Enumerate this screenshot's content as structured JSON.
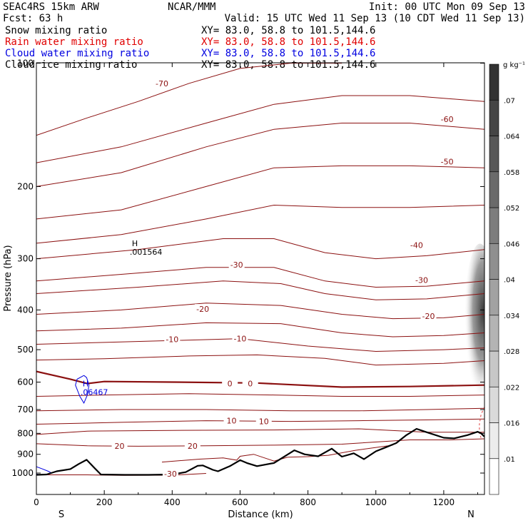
{
  "header": {
    "left1": "SEAC4RS 15km ARW",
    "center1": "NCAR/MMM",
    "right1": "Init: 00 UTC Mon 09 Sep 13",
    "left2": "Fcst:   63 h",
    "right2": "Valid: 15 UTC Wed 11 Sep 13 (10 CDT Wed 11 Sep 13)",
    "fields": [
      {
        "name": "Snow mixing ratio",
        "xy": "XY=  83.0, 58.8 to 101.5,144.6",
        "color": "#000000"
      },
      {
        "name": "Rain water mixing ratio",
        "xy": "XY=  83.0, 58.8 to 101.5,144.6",
        "color": "#e00000"
      },
      {
        "name": "Cloud water mixing ratio",
        "xy": "XY=  83.0, 58.8 to 101.5,144.6",
        "color": "#0000e0"
      },
      {
        "name": "Cloud ice mixing ratio",
        "xy": "XY=  83.0, 58.8 to 101.5,144.6",
        "color": "#000000"
      }
    ]
  },
  "chart_data": {
    "type": "cross-section",
    "xlabel": "Distance (km)",
    "ylabel": "Pressure (hPa)",
    "xlim": [
      0,
      1320
    ],
    "ylim": [
      1050,
      100
    ],
    "y_log": true,
    "x_ticks": [
      0,
      200,
      400,
      600,
      800,
      1000,
      1200
    ],
    "y_ticks": [
      100,
      200,
      300,
      400,
      500,
      600,
      700,
      800,
      900,
      1000
    ],
    "end_labels": {
      "left": "S",
      "right": "N"
    },
    "colorbar": {
      "unit": "g kg⁻¹",
      "ticks": [
        ".01",
        ".016",
        ".022",
        ".028",
        ".034",
        ".04",
        ".046",
        ".052",
        ".058",
        ".064",
        ".07"
      ],
      "values": [
        0.01,
        0.016,
        0.022,
        0.028,
        0.034,
        0.04,
        0.046,
        0.052,
        0.058,
        0.064,
        0.07
      ]
    },
    "snow_shading": {
      "x_range": [
        1260,
        1320
      ],
      "p_range": [
        300,
        590
      ],
      "max_value": 0.064
    },
    "temperature_color": "#8b1010",
    "temperature_contours": [
      {
        "label": "-70",
        "points": [
          [
            0,
            150
          ],
          [
            150,
            136
          ],
          [
            300,
            124
          ],
          [
            450,
            112
          ],
          [
            600,
            103
          ],
          [
            750,
            100
          ],
          [
            900,
            100
          ]
        ],
        "labels_at": [
          [
            370,
            112
          ]
        ]
      },
      {
        "label": "",
        "points": [
          [
            0,
            175
          ],
          [
            250,
            160
          ],
          [
            500,
            140
          ],
          [
            700,
            126
          ],
          [
            900,
            120
          ],
          [
            1100,
            120
          ],
          [
            1320,
            124
          ]
        ],
        "labels_at": []
      },
      {
        "label": "-60",
        "points": [
          [
            0,
            200
          ],
          [
            250,
            185
          ],
          [
            500,
            160
          ],
          [
            700,
            145
          ],
          [
            900,
            140
          ],
          [
            1100,
            140
          ],
          [
            1320,
            145
          ]
        ],
        "labels_at": [
          [
            1210,
            137
          ]
        ]
      },
      {
        "label": "-50",
        "points": [
          [
            0,
            240
          ],
          [
            250,
            228
          ],
          [
            500,
            200
          ],
          [
            700,
            180
          ],
          [
            900,
            178
          ],
          [
            1100,
            178
          ],
          [
            1320,
            180
          ]
        ],
        "labels_at": [
          [
            1210,
            174
          ]
        ]
      },
      {
        "label": "",
        "points": [
          [
            0,
            275
          ],
          [
            250,
            262
          ],
          [
            500,
            240
          ],
          [
            700,
            222
          ],
          [
            900,
            225
          ],
          [
            1100,
            225
          ],
          [
            1320,
            222
          ]
        ],
        "labels_at": []
      },
      {
        "label": "-40",
        "points": [
          [
            0,
            300
          ],
          [
            300,
            285
          ],
          [
            550,
            268
          ],
          [
            700,
            268
          ],
          [
            850,
            290
          ],
          [
            1000,
            300
          ],
          [
            1150,
            295
          ],
          [
            1320,
            285
          ]
        ],
        "labels_at": [
          [
            1120,
            278
          ]
        ]
      },
      {
        "label": "-30",
        "points": [
          [
            0,
            340
          ],
          [
            300,
            325
          ],
          [
            500,
            315
          ],
          [
            700,
            315
          ],
          [
            850,
            340
          ],
          [
            1000,
            352
          ],
          [
            1150,
            350
          ],
          [
            1320,
            340
          ]
        ],
        "labels_at": [
          [
            590,
            310
          ],
          [
            1135,
            338
          ]
        ]
      },
      {
        "label": "",
        "points": [
          [
            0,
            365
          ],
          [
            300,
            352
          ],
          [
            550,
            340
          ],
          [
            720,
            345
          ],
          [
            850,
            365
          ],
          [
            1000,
            378
          ],
          [
            1150,
            376
          ],
          [
            1320,
            365
          ]
        ],
        "labels_at": []
      },
      {
        "label": "-20",
        "points": [
          [
            0,
            410
          ],
          [
            250,
            400
          ],
          [
            500,
            385
          ],
          [
            720,
            390
          ],
          [
            900,
            410
          ],
          [
            1050,
            420
          ],
          [
            1200,
            418
          ],
          [
            1320,
            410
          ]
        ],
        "labels_at": [
          [
            490,
            398
          ],
          [
            1155,
            414
          ]
        ]
      },
      {
        "label": "",
        "points": [
          [
            0,
            450
          ],
          [
            250,
            443
          ],
          [
            500,
            430
          ],
          [
            720,
            432
          ],
          [
            900,
            455
          ],
          [
            1050,
            465
          ],
          [
            1200,
            462
          ],
          [
            1320,
            455
          ]
        ],
        "labels_at": []
      },
      {
        "label": "-10",
        "points": [
          [
            0,
            485
          ],
          [
            200,
            480
          ],
          [
            400,
            475
          ],
          [
            600,
            470
          ],
          [
            800,
            490
          ],
          [
            1000,
            505
          ],
          [
            1200,
            500
          ],
          [
            1320,
            495
          ]
        ],
        "labels_at": [
          [
            400,
            472
          ],
          [
            600,
            470
          ]
        ]
      },
      {
        "label": "",
        "points": [
          [
            0,
            530
          ],
          [
            200,
            526
          ],
          [
            450,
            518
          ],
          [
            650,
            515
          ],
          [
            850,
            525
          ],
          [
            1000,
            545
          ],
          [
            1200,
            540
          ],
          [
            1320,
            532
          ]
        ],
        "labels_at": []
      },
      {
        "label": "0",
        "bold": true,
        "points": [
          [
            0,
            565
          ],
          [
            100,
            590
          ],
          [
            150,
            605
          ],
          [
            200,
            598
          ],
          [
            400,
            600
          ],
          [
            650,
            603
          ],
          [
            900,
            617
          ],
          [
            1100,
            615
          ],
          [
            1320,
            610
          ]
        ],
        "labels_at": [
          [
            570,
            605
          ],
          [
            630,
            605
          ]
        ]
      },
      {
        "label": "",
        "points": [
          [
            0,
            650
          ],
          [
            200,
            645
          ],
          [
            450,
            640
          ],
          [
            700,
            645
          ],
          [
            900,
            650
          ],
          [
            1100,
            650
          ],
          [
            1320,
            645
          ]
        ],
        "labels_at": []
      },
      {
        "label": "",
        "points": [
          [
            0,
            705
          ],
          [
            250,
            700
          ],
          [
            500,
            700
          ],
          [
            750,
            705
          ],
          [
            950,
            705
          ],
          [
            1150,
            700
          ],
          [
            1320,
            695
          ]
        ],
        "labels_at": []
      },
      {
        "label": "10",
        "points": [
          [
            0,
            760
          ],
          [
            250,
            752
          ],
          [
            500,
            745
          ],
          [
            750,
            748
          ],
          [
            950,
            745
          ],
          [
            1150,
            742
          ],
          [
            1320,
            738
          ]
        ],
        "labels_at": [
          [
            575,
            745
          ],
          [
            670,
            748
          ]
        ]
      },
      {
        "label": "",
        "points": [
          [
            0,
            805
          ],
          [
            150,
            790
          ],
          [
            400,
            787
          ],
          [
            700,
            785
          ],
          [
            950,
            780
          ],
          [
            1150,
            795
          ],
          [
            1320,
            795
          ]
        ],
        "labels_at": []
      },
      {
        "label": "20",
        "points": [
          [
            0,
            848
          ],
          [
            150,
            858
          ],
          [
            300,
            860
          ],
          [
            500,
            858
          ],
          [
            700,
            855
          ],
          [
            900,
            850
          ],
          [
            1100,
            830
          ],
          [
            1220,
            830
          ],
          [
            1320,
            825
          ]
        ],
        "labels_at": [
          [
            245,
            858
          ],
          [
            460,
            858
          ]
        ]
      },
      {
        "label": "-30",
        "points": [
          [
            0,
            1010
          ],
          [
            150,
            1010
          ],
          [
            250,
            1013
          ],
          [
            400,
            1012
          ],
          [
            500,
            1002
          ]
        ],
        "labels_at": [
          [
            395,
            1005
          ]
        ]
      }
    ],
    "low_level_contour": {
      "points": [
        [
          370,
          940
        ],
        [
          480,
          925
        ],
        [
          550,
          918
        ],
        [
          590,
          930
        ],
        [
          600,
          910
        ],
        [
          640,
          900
        ],
        [
          700,
          935
        ],
        [
          740,
          915
        ],
        [
          800,
          912
        ],
        [
          860,
          905
        ],
        [
          940,
          880
        ],
        [
          1050,
          855
        ]
      ]
    },
    "terrain": {
      "points": [
        [
          0,
          1010
        ],
        [
          30,
          1008
        ],
        [
          60,
          990
        ],
        [
          100,
          978
        ],
        [
          125,
          950
        ],
        [
          148,
          928
        ],
        [
          170,
          970
        ],
        [
          190,
          1008
        ],
        [
          260,
          1010
        ],
        [
          330,
          1010
        ],
        [
          400,
          1008
        ],
        [
          440,
          995
        ],
        [
          475,
          960
        ],
        [
          490,
          958
        ],
        [
          520,
          982
        ],
        [
          535,
          990
        ],
        [
          570,
          962
        ],
        [
          600,
          930
        ],
        [
          620,
          945
        ],
        [
          650,
          962
        ],
        [
          700,
          945
        ],
        [
          760,
          880
        ],
        [
          790,
          900
        ],
        [
          830,
          910
        ],
        [
          870,
          872
        ],
        [
          900,
          912
        ],
        [
          935,
          895
        ],
        [
          965,
          925
        ],
        [
          1000,
          885
        ],
        [
          1030,
          865
        ],
        [
          1060,
          845
        ],
        [
          1090,
          808
        ],
        [
          1120,
          780
        ],
        [
          1150,
          795
        ],
        [
          1200,
          820
        ],
        [
          1230,
          823
        ],
        [
          1270,
          808
        ],
        [
          1300,
          793
        ],
        [
          1310,
          800
        ],
        [
          1320,
          815
        ]
      ]
    },
    "cloud_water_contours": [
      {
        "points": [
          [
            140,
            578
          ],
          [
            120,
            590
          ],
          [
            115,
            610
          ],
          [
            128,
            650
          ],
          [
            140,
            675
          ],
          [
            150,
            645
          ],
          [
            155,
            610
          ],
          [
            148,
            585
          ],
          [
            140,
            578
          ]
        ]
      },
      {
        "points": [
          [
            0,
            965
          ],
          [
            15,
            975
          ],
          [
            35,
            990
          ],
          [
            45,
            1000
          ],
          [
            30,
            1008
          ],
          [
            10,
            1010
          ],
          [
            0,
            1005
          ]
        ]
      }
    ],
    "rain_dashed": {
      "points": [
        [
          1320,
          690
        ],
        [
          1310,
          720
        ],
        [
          1305,
          760
        ],
        [
          1305,
          800
        ],
        [
          1310,
          820
        ]
      ]
    },
    "annotations": [
      {
        "marker": "H",
        "value": ".001564",
        "x": 275,
        "p": 284,
        "color": "#000000"
      },
      {
        "marker": "H",
        "value": ".06467",
        "x": 130,
        "p": 624,
        "color": "#0000e0"
      }
    ]
  }
}
